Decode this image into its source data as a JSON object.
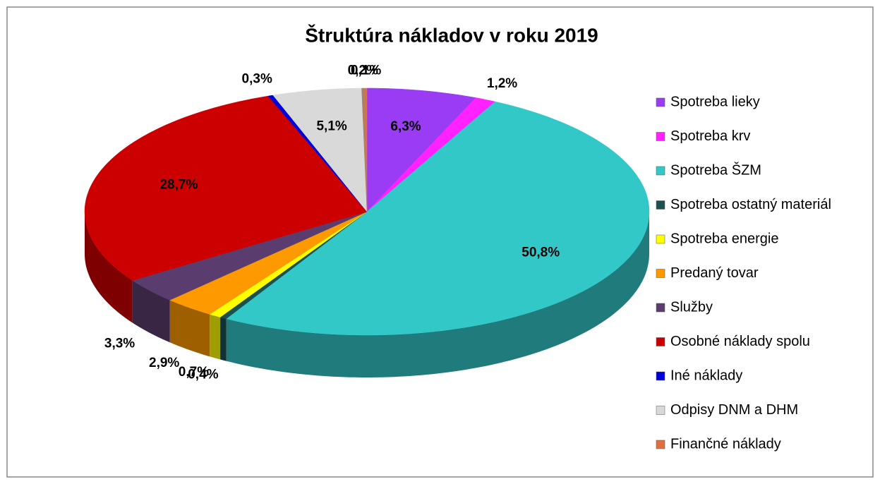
{
  "chart_data": {
    "type": "pie3d",
    "title": "Štruktúra nákladov v roku 2019",
    "categories": [
      "Spotreba lieky",
      "Spotreba krv",
      "Spotreba ŠZM",
      "Spotreba ostatný materiál",
      "Spotreba energie",
      "Predaný tovar",
      "Služby",
      "Osobné náklady spolu",
      "Iné náklady",
      "Odpisy DNM a DHM",
      null,
      "Finančné náklady"
    ],
    "values": [
      6.3,
      1.2,
      50.8,
      0.4,
      0.7,
      2.9,
      3.3,
      28.7,
      0.3,
      5.1,
      0.2,
      0.1
    ],
    "value_labels": [
      "6,3%",
      "1,2%",
      "50,8%",
      "0,4%",
      "0,7%",
      "2,9%",
      "3,3%",
      "28,7%",
      "0,3%",
      "5,1%",
      "0,2%",
      "0,1%"
    ],
    "colors": [
      "#9b3cf5",
      "#ff22ff",
      "#33c8c8",
      "#1a5050",
      "#ffff00",
      "#ff9900",
      "#5a3d6e",
      "#cc0000",
      "#0000dd",
      "#d9d9d9",
      "#b08060",
      "#e07040"
    ],
    "legend": "right"
  }
}
